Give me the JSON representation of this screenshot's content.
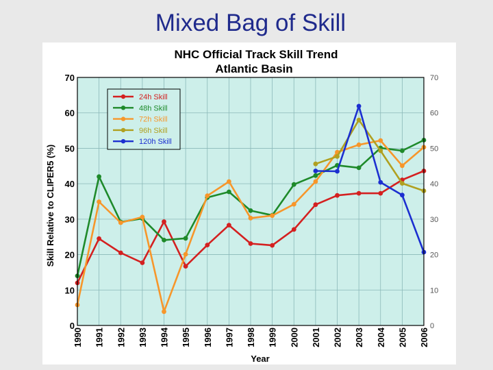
{
  "slide": {
    "title": "Mixed Bag of Skill"
  },
  "chart_data": {
    "type": "line",
    "title": "NHC Official Track Skill Trend",
    "subtitle": "Atlantic Basin",
    "xlabel": "Year",
    "ylabel": "Skill Relative to CLIPER5 (%)",
    "ylim": [
      0,
      70
    ],
    "yticks": [
      0,
      10,
      20,
      30,
      40,
      50,
      60,
      70
    ],
    "x": [
      "1990",
      "1991",
      "1992",
      "1993",
      "1994",
      "1995",
      "1996",
      "1997",
      "1998",
      "1999",
      "2000",
      "2001",
      "2002",
      "2003",
      "2004",
      "2005",
      "2006"
    ],
    "grid": true,
    "legend_position": "top-left",
    "colors": {
      "plot_background": "#cdefea",
      "grid": "#8ab8b8"
    },
    "series": [
      {
        "name": "24h Skill",
        "color": "#d42020",
        "values": [
          12,
          24.5,
          20.5,
          17.7,
          29.3,
          16.7,
          22.7,
          28.3,
          23.1,
          22.6,
          27.1,
          34.1,
          36.7,
          37.3,
          37.3,
          41.1,
          43.6
        ]
      },
      {
        "name": "48h Skill",
        "color": "#1e8a2a",
        "values": [
          14,
          42,
          29.2,
          30.2,
          24.1,
          24.6,
          36.1,
          37.7,
          32.4,
          31.1,
          39.8,
          42.3,
          45.2,
          44.5,
          50.1,
          49.3,
          52.3
        ]
      },
      {
        "name": "72h Skill",
        "color": "#f7962a",
        "values": [
          5.8,
          34.9,
          29,
          30.6,
          3.9,
          20.1,
          36.6,
          40.6,
          30.3,
          31,
          34.2,
          40.6,
          48.9,
          51,
          52.2,
          45.1,
          50.3
        ]
      },
      {
        "name": "96h Skill",
        "color": "#b0a020",
        "values": [
          null,
          null,
          null,
          null,
          null,
          null,
          null,
          null,
          null,
          null,
          null,
          45.6,
          47.7,
          58,
          49.3,
          40.1,
          38
        ]
      },
      {
        "name": "120h Skill",
        "color": "#1c2fd0",
        "values": [
          null,
          null,
          null,
          null,
          null,
          null,
          null,
          null,
          null,
          null,
          null,
          43.6,
          43.5,
          61.9,
          40.4,
          36.8,
          20.7
        ]
      }
    ]
  }
}
